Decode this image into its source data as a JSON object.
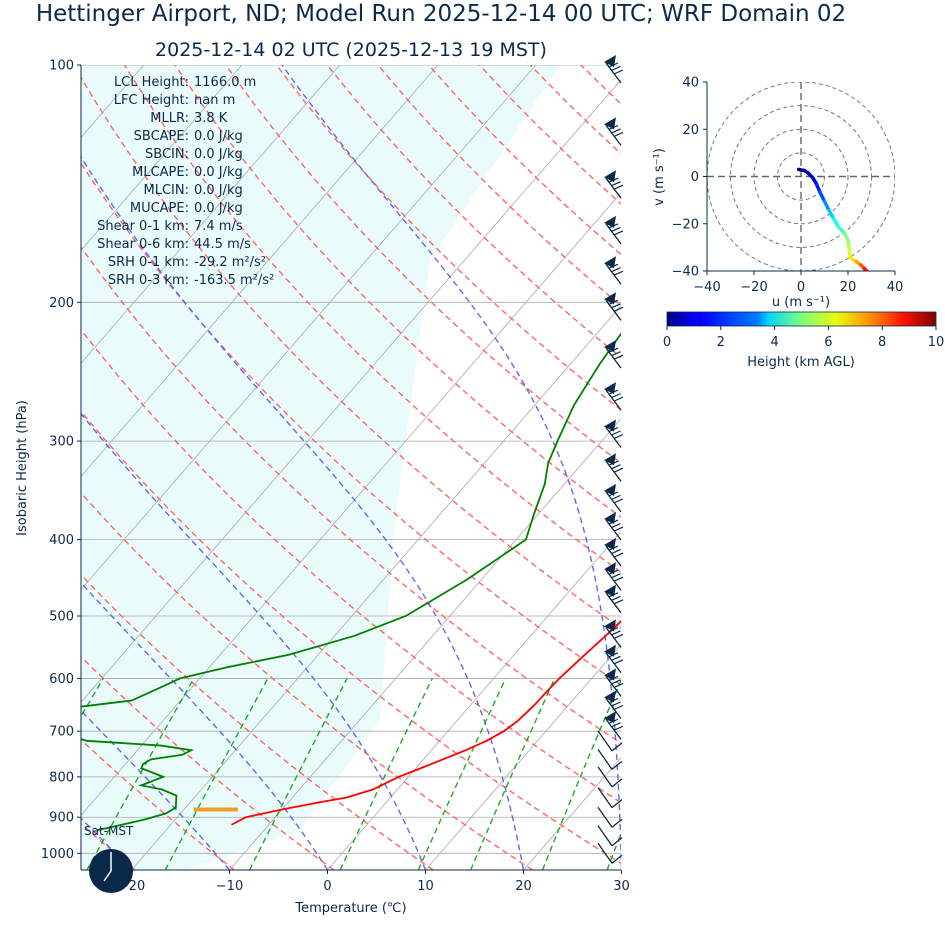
{
  "title": "Hettinger Airport, ND; Model Run 2025-12-14 00 UTC; WRF Domain 02",
  "subtitle": "2025-12-14 02 UTC  (2025-12-13 19 MST)",
  "colors": {
    "text": "#0b2a4a",
    "temperature": "#ff0000",
    "dewpoint": "#008000",
    "dry_adiabat": "#ff6666",
    "moist_adiabat": "#6666ee",
    "mixing_ratio": "#22aa22",
    "isotherm": "#aaaaaa",
    "isobar": "#aaaaaa",
    "cape_shade": "#e9fbfb",
    "barb": "#0b2a4a",
    "sfc_marker": "#f0a020"
  },
  "parameters": [
    {
      "label": "LCL Height:",
      "value": "1166.0 m"
    },
    {
      "label": "LFC Height:",
      "value": "nan m"
    },
    {
      "label": "MLLR:",
      "value": "3.8 K"
    },
    {
      "label": "SBCAPE:",
      "value": "0.0 J/kg"
    },
    {
      "label": "SBCIN:",
      "value": "0.0 J/kg"
    },
    {
      "label": "MLCAPE:",
      "value": "0.0 J/kg"
    },
    {
      "label": "MLCIN:",
      "value": "0.0 J/kg"
    },
    {
      "label": "MUCAPE:",
      "value": "0.0 J/kg"
    },
    {
      "label": "Shear 0-1 km:",
      "value": "7.4 m/s"
    },
    {
      "label": "Shear 0-6 km:",
      "value": "44.5 m/s"
    },
    {
      "label": "SRH 0-1 km:",
      "value": "-29.2 m²/s²"
    },
    {
      "label": "SRH 0-3 km:",
      "value": "-163.5 m²/s²"
    }
  ],
  "clock_label": "Sat-MST",
  "chart_data": [
    {
      "type": "line",
      "name": "skew-t",
      "xlabel": "Temperature (℃)",
      "ylabel": "Isobaric Height (hPa)",
      "x_ticks": [
        -20,
        -10,
        0,
        10,
        20,
        30
      ],
      "x_tick_labels": [
        "−20",
        "−10",
        "0",
        "10",
        "20",
        "30"
      ],
      "y_ticks": [
        1000,
        900,
        800,
        700,
        600,
        500,
        400,
        300,
        200,
        100
      ],
      "y_scale": "log",
      "ylim": [
        1050,
        100
      ],
      "xlim": [
        -25,
        30
      ],
      "grid": true,
      "temperature": {
        "p": [
          920,
          900,
          880,
          860,
          850,
          830,
          800,
          780,
          760,
          740,
          720,
          700,
          680,
          650,
          620,
          600,
          560,
          520,
          500,
          480,
          460,
          440,
          420,
          400,
          370,
          340,
          300,
          270,
          240,
          220,
          200,
          190,
          180,
          160,
          140,
          120,
          110,
          100
        ],
        "T": [
          -13.8,
          -13.0,
          -10.0,
          -6.5,
          -4.5,
          -2.5,
          -1.0,
          0.5,
          2.0,
          3.5,
          4.8,
          5.7,
          6.2,
          6.5,
          6.6,
          6.7,
          7.2,
          7.8,
          8.0,
          8.1,
          7.8,
          7.0,
          6.0,
          4.5,
          2.5,
          0.5,
          -2.0,
          -3.8,
          -4.7,
          -5.0,
          -4.5,
          -3.7,
          -2.5,
          0.0,
          3.0,
          6.5,
          9.0,
          11.5
        ]
      },
      "dewpoint": {
        "p": [
          935,
          920,
          905,
          890,
          875,
          860,
          845,
          830,
          820,
          800,
          780,
          770,
          760,
          750,
          740,
          730,
          720,
          700,
          660,
          650,
          640,
          620,
          600,
          580,
          560,
          530,
          500,
          450,
          400,
          370,
          340,
          320,
          300,
          270,
          240,
          220,
          200,
          180,
          160,
          140,
          120,
          110,
          100
        ],
        "Td": [
          -27.0,
          -25.0,
          -23.0,
          -21.5,
          -21.0,
          -21.5,
          -22.0,
          -24.0,
          -26.5,
          -25.0,
          -28.0,
          -28.2,
          -27.8,
          -25.0,
          -24.5,
          -28.0,
          -36.0,
          -40.0,
          -43.0,
          -39.0,
          -35.0,
          -33.5,
          -32.0,
          -28.0,
          -23.0,
          -18.0,
          -14.5,
          -11.5,
          -9.0,
          -10.5,
          -12.0,
          -13.5,
          -14.5,
          -16.0,
          -17.0,
          -17.5,
          -17.0,
          -16.5,
          -16.0,
          -15.5,
          -12.0,
          -9.0,
          -7.0
        ]
      },
      "surface_marker": {
        "p": 880,
        "T_range": [
          -19.0,
          -14.5
        ]
      },
      "wind_barbs_p": [
        100,
        120,
        140,
        160,
        180,
        200,
        230,
        260,
        290,
        320,
        350,
        380,
        410,
        440,
        470,
        520,
        560,
        600,
        640,
        680,
        720,
        760,
        800,
        850,
        900,
        950,
        1000
      ]
    },
    {
      "type": "scatter",
      "name": "hodograph",
      "xlabel": "u (m s⁻¹)",
      "ylabel": "v (m s⁻¹)",
      "xlim": [
        -40,
        40
      ],
      "ylim": [
        -40,
        40
      ],
      "x_ticks": [
        -40,
        -20,
        0,
        20,
        40
      ],
      "x_tick_labels": [
        "−40",
        "−20",
        "0",
        "20",
        "40"
      ],
      "y_ticks": [
        40,
        20,
        0,
        -20,
        -40
      ],
      "y_tick_labels": [
        "40",
        "20",
        "0",
        "−20",
        "−40"
      ],
      "rings": [
        10,
        20,
        30,
        40
      ],
      "points": [
        {
          "u": -1.0,
          "v": 3.0,
          "h": 0.0
        },
        {
          "u": 1.5,
          "v": 2.5,
          "h": 0.3
        },
        {
          "u": 3.0,
          "v": 1.5,
          "h": 0.6
        },
        {
          "u": 5.0,
          "v": -0.5,
          "h": 1.0
        },
        {
          "u": 6.5,
          "v": -3.0,
          "h": 1.5
        },
        {
          "u": 8.0,
          "v": -6.5,
          "h": 2.0
        },
        {
          "u": 10.0,
          "v": -10.5,
          "h": 2.7
        },
        {
          "u": 12.0,
          "v": -14.5,
          "h": 3.3
        },
        {
          "u": 14.0,
          "v": -18.0,
          "h": 3.9
        },
        {
          "u": 16.0,
          "v": -21.5,
          "h": 4.4
        },
        {
          "u": 18.5,
          "v": -24.0,
          "h": 4.9
        },
        {
          "u": 20.0,
          "v": -27.0,
          "h": 5.4
        },
        {
          "u": 20.5,
          "v": -31.0,
          "h": 5.9
        },
        {
          "u": 21.0,
          "v": -34.5,
          "h": 6.5
        },
        {
          "u": 23.5,
          "v": -36.0,
          "h": 7.2
        },
        {
          "u": 25.5,
          "v": -37.5,
          "h": 7.9
        },
        {
          "u": 27.0,
          "v": -39.0,
          "h": 8.6
        },
        {
          "u": 28.0,
          "v": -40.0,
          "h": 9.2
        }
      ]
    },
    {
      "type": "heatmap",
      "name": "colorbar",
      "xlabel": "Height (km AGL)",
      "range": [
        0,
        10
      ],
      "ticks": [
        0,
        2,
        4,
        6,
        8,
        10
      ],
      "tick_labels": [
        "0",
        "2",
        "4",
        "6",
        "8",
        "10"
      ],
      "colormap": "jet"
    }
  ]
}
